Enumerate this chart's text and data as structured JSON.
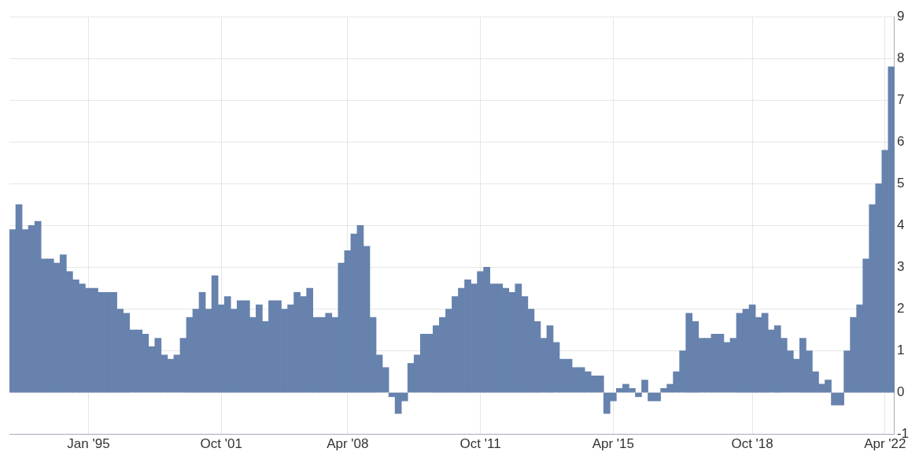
{
  "chart_data": {
    "type": "bar",
    "categories": [
      null,
      null,
      null,
      null,
      null,
      null,
      null,
      null,
      null,
      null,
      null,
      null,
      "Jan '95",
      null,
      null,
      null,
      null,
      null,
      null,
      null,
      null,
      null,
      null,
      null,
      null,
      null,
      null,
      null,
      null,
      null,
      null,
      null,
      null,
      "Oct '01",
      null,
      null,
      null,
      null,
      null,
      null,
      null,
      null,
      null,
      null,
      null,
      null,
      null,
      null,
      null,
      null,
      null,
      null,
      null,
      "Apr '08",
      null,
      null,
      null,
      null,
      null,
      null,
      null,
      null,
      null,
      null,
      null,
      null,
      null,
      null,
      null,
      null,
      null,
      null,
      null,
      null,
      "Oct '11",
      null,
      null,
      null,
      null,
      null,
      null,
      null,
      null,
      null,
      null,
      null,
      null,
      null,
      null,
      null,
      null,
      null,
      null,
      null,
      null,
      "Apr '15",
      null,
      null,
      null,
      null,
      null,
      null,
      null,
      null,
      null,
      null,
      null,
      null,
      null,
      null,
      null,
      null,
      null,
      null,
      null,
      null,
      null,
      "Oct '18",
      null,
      null,
      null,
      null,
      null,
      null,
      null,
      null,
      null,
      null,
      null,
      null,
      null,
      null,
      null,
      null,
      null,
      null,
      null,
      null,
      "Apr '22",
      null
    ],
    "series": [
      {
        "color": "#6682ad",
        "values": [
          3.9,
          4.5,
          3.9,
          4.0,
          4.1,
          3.2,
          3.2,
          3.1,
          3.3,
          2.9,
          2.7,
          2.6,
          2.5,
          2.5,
          2.4,
          2.4,
          2.4,
          2.0,
          1.9,
          1.5,
          1.5,
          1.4,
          1.1,
          1.3,
          0.9,
          0.8,
          0.9,
          1.3,
          1.8,
          2.0,
          2.4,
          2.0,
          2.8,
          2.1,
          2.3,
          2.0,
          2.2,
          2.2,
          1.8,
          2.1,
          1.7,
          2.2,
          2.2,
          2.0,
          2.1,
          2.4,
          2.3,
          2.5,
          1.8,
          1.8,
          1.9,
          1.8,
          3.1,
          3.4,
          3.8,
          4.0,
          3.5,
          1.8,
          0.9,
          0.6,
          -0.1,
          -0.5,
          -0.2,
          0.7,
          0.9,
          1.4,
          1.4,
          1.6,
          1.8,
          2.0,
          2.3,
          2.5,
          2.7,
          2.6,
          2.9,
          3.0,
          2.6,
          2.6,
          2.5,
          2.4,
          2.6,
          2.3,
          2.0,
          1.7,
          1.3,
          1.6,
          1.2,
          0.8,
          0.8,
          0.6,
          0.6,
          0.5,
          0.4,
          0.4,
          -0.5,
          -0.2,
          0.1,
          0.2,
          0.1,
          -0.1,
          0.3,
          -0.2,
          -0.2,
          0.1,
          0.2,
          0.5,
          1.0,
          1.9,
          1.7,
          1.3,
          1.3,
          1.4,
          1.4,
          1.2,
          1.3,
          1.9,
          2.0,
          2.1,
          1.8,
          1.9,
          1.5,
          1.6,
          1.3,
          1.0,
          0.8,
          1.3,
          1.0,
          0.5,
          0.2,
          0.3,
          -0.3,
          -0.3,
          1.0,
          1.8,
          2.1,
          3.2,
          4.5,
          5.0,
          5.8,
          7.8
        ]
      }
    ],
    "ylim": [
      -1,
      9
    ],
    "yticks": [
      -1,
      0,
      1,
      2,
      3,
      4,
      5,
      6,
      7,
      8,
      9
    ],
    "grid": true,
    "legend": false
  }
}
